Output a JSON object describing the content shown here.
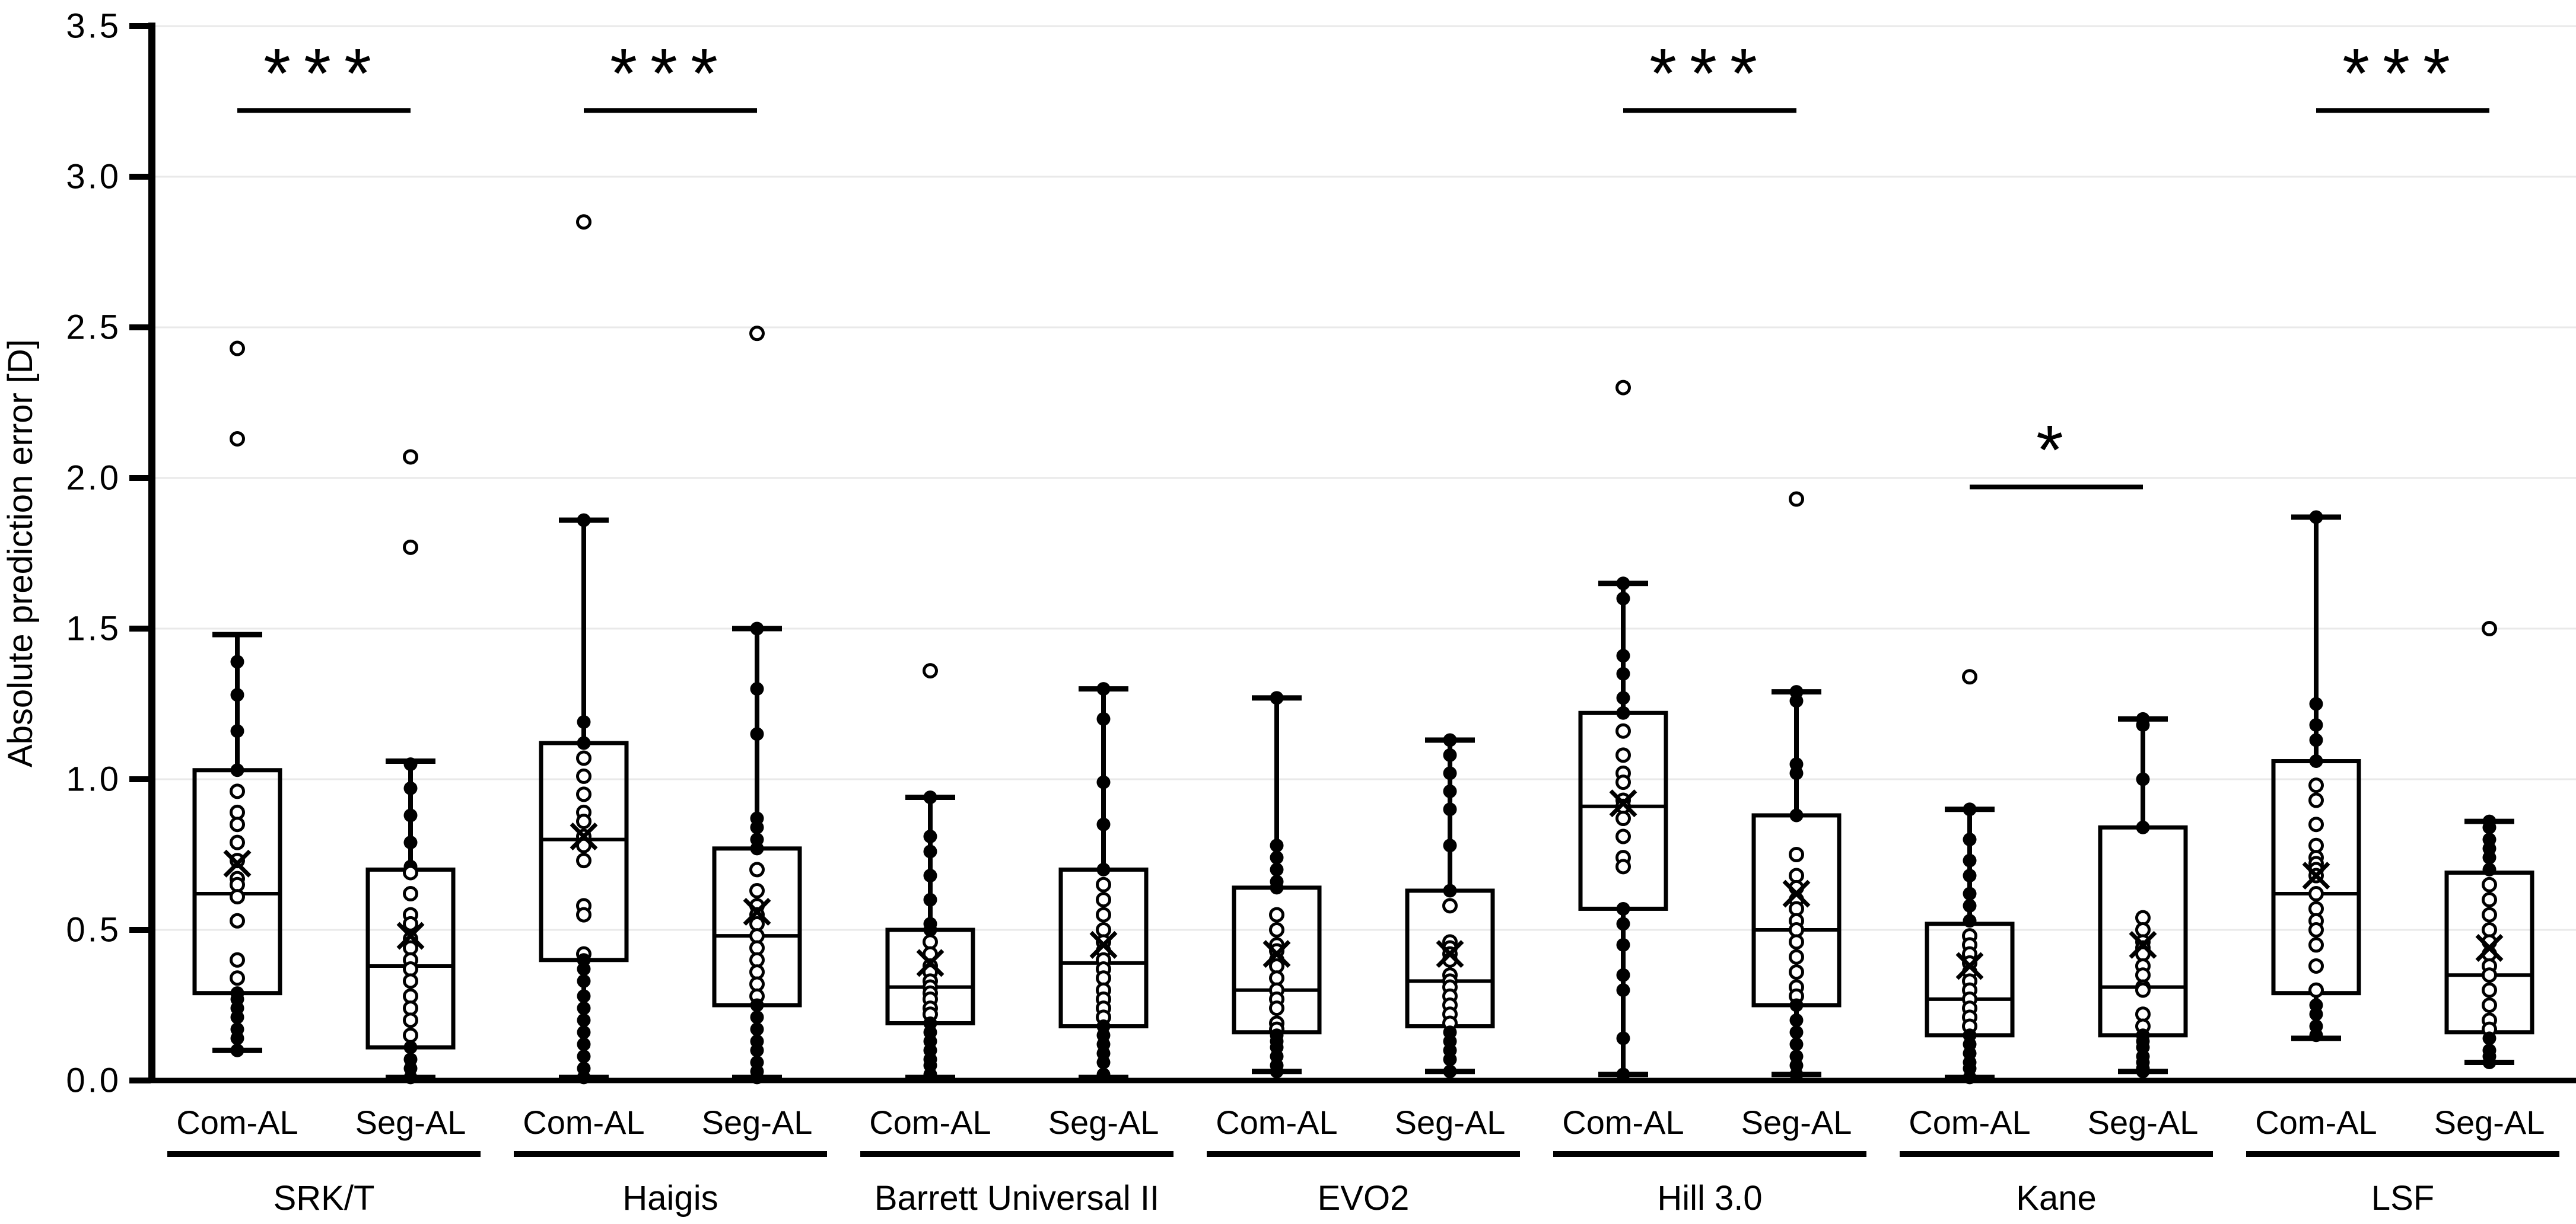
{
  "figure_title": "",
  "chart_data": {
    "type": "box",
    "title": "",
    "xlabel": "",
    "ylabel": "Absolute prediction error [D]",
    "ylim": [
      0.0,
      3.5
    ],
    "ytick_labels": [
      "0.0",
      "0.5",
      "1.0",
      "1.5",
      "2.0",
      "2.5",
      "3.0",
      "3.5"
    ],
    "ytick_values": [
      0.0,
      0.5,
      1.0,
      1.5,
      2.0,
      2.5,
      3.0,
      3.5
    ],
    "grid": "horizontal-light",
    "grid_color": "#e9e9e9",
    "ink_color": "#000000",
    "series_labels": [
      "Com-AL",
      "Seg-AL"
    ],
    "significance_symbols_used": [
      "***",
      "*"
    ],
    "groups": [
      {
        "label": "SRK/T",
        "significance": {
          "symbol": "***",
          "bar_height": 3.22
        },
        "boxes": [
          {
            "series": "Com-AL",
            "whisker_low": 0.1,
            "q1": 0.29,
            "median": 0.62,
            "mean": 0.72,
            "q3": 1.03,
            "whisker_high": 1.48,
            "outliers": [
              2.43,
              2.13
            ],
            "points": [
              1.39,
              1.28,
              1.16,
              1.03,
              0.96,
              0.89,
              0.85,
              0.79,
              0.73,
              0.67,
              0.65,
              0.61,
              0.53,
              0.4,
              0.34,
              0.29,
              0.27,
              0.24,
              0.21,
              0.17,
              0.14,
              0.1
            ]
          },
          {
            "series": "Seg-AL",
            "whisker_low": 0.01,
            "q1": 0.11,
            "median": 0.38,
            "mean": 0.48,
            "q3": 0.7,
            "whisker_high": 1.06,
            "outliers": [
              2.07,
              1.77
            ],
            "points": [
              1.05,
              0.97,
              0.88,
              0.79,
              0.71,
              0.69,
              0.62,
              0.55,
              0.52,
              0.47,
              0.44,
              0.4,
              0.37,
              0.33,
              0.28,
              0.24,
              0.2,
              0.15,
              0.11,
              0.07,
              0.04,
              0.01
            ]
          }
        ]
      },
      {
        "label": "Haigis",
        "significance": {
          "symbol": "***",
          "bar_height": 3.22
        },
        "boxes": [
          {
            "series": "Com-AL",
            "whisker_low": 0.01,
            "q1": 0.4,
            "median": 0.8,
            "mean": 0.81,
            "q3": 1.12,
            "whisker_high": 1.86,
            "outliers": [
              2.85
            ],
            "points": [
              1.86,
              1.19,
              1.12,
              1.07,
              1.01,
              0.95,
              0.89,
              0.86,
              0.81,
              0.78,
              0.73,
              0.58,
              0.55,
              0.42,
              0.4,
              0.37,
              0.33,
              0.28,
              0.24,
              0.2,
              0.16,
              0.12,
              0.08,
              0.04,
              0.01
            ]
          },
          {
            "series": "Seg-AL",
            "whisker_low": 0.01,
            "q1": 0.25,
            "median": 0.48,
            "mean": 0.56,
            "q3": 0.77,
            "whisker_high": 1.5,
            "outliers": [
              2.48
            ],
            "points": [
              1.5,
              1.3,
              1.15,
              0.87,
              0.84,
              0.8,
              0.77,
              0.7,
              0.63,
              0.58,
              0.55,
              0.52,
              0.48,
              0.44,
              0.4,
              0.36,
              0.32,
              0.28,
              0.25,
              0.21,
              0.17,
              0.13,
              0.1,
              0.06,
              0.03,
              0.01
            ]
          }
        ]
      },
      {
        "label": "Barrett Universal II",
        "significance": null,
        "boxes": [
          {
            "series": "Com-AL",
            "whisker_low": 0.01,
            "q1": 0.19,
            "median": 0.31,
            "mean": 0.39,
            "q3": 0.5,
            "whisker_high": 0.94,
            "outliers": [
              1.36
            ],
            "points": [
              0.94,
              0.81,
              0.76,
              0.68,
              0.6,
              0.52,
              0.5,
              0.46,
              0.42,
              0.38,
              0.36,
              0.33,
              0.31,
              0.29,
              0.27,
              0.24,
              0.22,
              0.19,
              0.16,
              0.13,
              0.1,
              0.07,
              0.05,
              0.02
            ]
          },
          {
            "series": "Seg-AL",
            "whisker_low": 0.01,
            "q1": 0.18,
            "median": 0.39,
            "mean": 0.45,
            "q3": 0.7,
            "whisker_high": 1.3,
            "outliers": [],
            "points": [
              1.3,
              1.2,
              0.99,
              0.85,
              0.7,
              0.65,
              0.6,
              0.55,
              0.5,
              0.46,
              0.43,
              0.4,
              0.37,
              0.34,
              0.3,
              0.27,
              0.24,
              0.21,
              0.18,
              0.15,
              0.12,
              0.09,
              0.06,
              0.02
            ]
          }
        ]
      },
      {
        "label": "EVO2",
        "significance": null,
        "boxes": [
          {
            "series": "Com-AL",
            "whisker_low": 0.03,
            "q1": 0.16,
            "median": 0.3,
            "mean": 0.42,
            "q3": 0.64,
            "whisker_high": 1.27,
            "outliers": [],
            "points": [
              1.27,
              0.78,
              0.74,
              0.7,
              0.66,
              0.64,
              0.55,
              0.5,
              0.45,
              0.43,
              0.4,
              0.38,
              0.34,
              0.3,
              0.27,
              0.24,
              0.19,
              0.17,
              0.15,
              0.13,
              0.11,
              0.08,
              0.05,
              0.03
            ]
          },
          {
            "series": "Seg-AL",
            "whisker_low": 0.03,
            "q1": 0.18,
            "median": 0.33,
            "mean": 0.42,
            "q3": 0.63,
            "whisker_high": 1.13,
            "outliers": [],
            "points": [
              1.13,
              1.08,
              1.02,
              0.96,
              0.9,
              0.78,
              0.63,
              0.58,
              0.46,
              0.44,
              0.42,
              0.4,
              0.35,
              0.33,
              0.31,
              0.28,
              0.25,
              0.22,
              0.19,
              0.16,
              0.13,
              0.1,
              0.07,
              0.03
            ]
          }
        ]
      },
      {
        "label": "Hill 3.0",
        "significance": {
          "symbol": "***",
          "bar_height": 3.22
        },
        "boxes": [
          {
            "series": "Com-AL",
            "whisker_low": 0.02,
            "q1": 0.57,
            "median": 0.91,
            "mean": 0.92,
            "q3": 1.22,
            "whisker_high": 1.65,
            "outliers": [
              2.3
            ],
            "points": [
              1.65,
              1.6,
              1.41,
              1.35,
              1.27,
              1.22,
              1.16,
              1.08,
              1.02,
              0.99,
              0.93,
              0.91,
              0.87,
              0.81,
              0.74,
              0.71,
              0.57,
              0.52,
              0.45,
              0.35,
              0.3,
              0.14,
              0.02
            ]
          },
          {
            "series": "Seg-AL",
            "whisker_low": 0.02,
            "q1": 0.25,
            "median": 0.5,
            "mean": 0.62,
            "q3": 0.88,
            "whisker_high": 1.29,
            "outliers": [
              1.93
            ],
            "points": [
              1.29,
              1.26,
              1.05,
              1.02,
              0.88,
              0.75,
              0.68,
              0.64,
              0.6,
              0.57,
              0.53,
              0.5,
              0.46,
              0.41,
              0.36,
              0.31,
              0.28,
              0.25,
              0.2,
              0.16,
              0.12,
              0.08,
              0.05,
              0.02
            ]
          }
        ]
      },
      {
        "label": "Kane",
        "significance": {
          "symbol": "*",
          "bar_height": 1.97
        },
        "boxes": [
          {
            "series": "Com-AL",
            "whisker_low": 0.01,
            "q1": 0.15,
            "median": 0.27,
            "mean": 0.38,
            "q3": 0.52,
            "whisker_high": 0.9,
            "outliers": [
              1.34
            ],
            "points": [
              0.9,
              0.8,
              0.73,
              0.68,
              0.62,
              0.58,
              0.53,
              0.48,
              0.45,
              0.42,
              0.39,
              0.36,
              0.33,
              0.3,
              0.27,
              0.24,
              0.21,
              0.18,
              0.15,
              0.12,
              0.09,
              0.06,
              0.04,
              0.01
            ]
          },
          {
            "series": "Seg-AL",
            "whisker_low": 0.03,
            "q1": 0.15,
            "median": 0.31,
            "mean": 0.45,
            "q3": 0.84,
            "whisker_high": 1.2,
            "outliers": [],
            "points": [
              1.2,
              1.18,
              1.0,
              0.84,
              0.54,
              0.5,
              0.46,
              0.44,
              0.42,
              0.38,
              0.35,
              0.31,
              0.3,
              0.22,
              0.18,
              0.15,
              0.13,
              0.11,
              0.08,
              0.06,
              0.04,
              0.03
            ]
          }
        ]
      },
      {
        "label": "LSF",
        "significance": {
          "symbol": "***",
          "bar_height": 3.22
        },
        "boxes": [
          {
            "series": "Com-AL",
            "whisker_low": 0.14,
            "q1": 0.29,
            "median": 0.62,
            "mean": 0.68,
            "q3": 1.06,
            "whisker_high": 1.87,
            "outliers": [],
            "points": [
              1.87,
              1.25,
              1.18,
              1.13,
              1.06,
              0.98,
              0.93,
              0.85,
              0.78,
              0.74,
              0.72,
              0.7,
              0.68,
              0.62,
              0.57,
              0.53,
              0.5,
              0.45,
              0.38,
              0.3,
              0.25,
              0.22,
              0.18,
              0.15
            ]
          },
          {
            "series": "Seg-AL",
            "whisker_low": 0.06,
            "q1": 0.16,
            "median": 0.35,
            "mean": 0.44,
            "q3": 0.69,
            "whisker_high": 0.86,
            "outliers": [
              1.5
            ],
            "points": [
              0.86,
              0.84,
              0.8,
              0.77,
              0.74,
              0.7,
              0.65,
              0.6,
              0.55,
              0.5,
              0.46,
              0.42,
              0.38,
              0.35,
              0.3,
              0.25,
              0.2,
              0.17,
              0.14,
              0.1,
              0.08,
              0.06
            ]
          }
        ]
      }
    ]
  }
}
